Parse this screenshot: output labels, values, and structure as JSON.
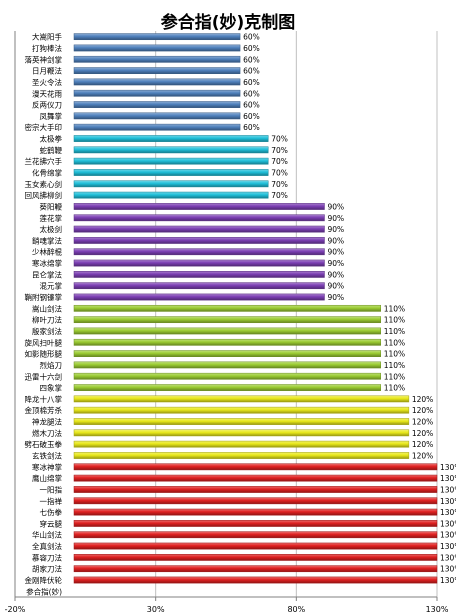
{
  "chart_data": {
    "type": "bar",
    "orientation": "horizontal",
    "title": "参合指(妙)克制图",
    "xlabel": "",
    "ylabel": "",
    "xlim": [
      -20,
      130
    ],
    "xticks": [
      "-20%",
      "30%",
      "80%",
      "130%"
    ],
    "grid": "vertical",
    "legend": "none",
    "categories": [
      "大嵩阳手",
      "打狗棒法",
      "落英神剑掌",
      "日月鞭法",
      "圣火令法",
      "漫天花雨",
      "反两仪刀",
      "凤舞掌",
      "密宗大手印",
      "太极拳",
      "蛇鹤鞭",
      "兰花拂穴手",
      "化骨绵掌",
      "玉女素心剑",
      "回风拂柳剑",
      "葵阳鞭",
      "莲花掌",
      "太极剑",
      "銷魂掌法",
      "少林醉棍",
      "寒冰绵掌",
      "昆仑掌法",
      "混元掌",
      "鞘附钢镰掌",
      "嵩山剑法",
      "柳叶刀法",
      "殷家剑法",
      "旋风扫叶腿",
      "如影随形腿",
      "烈焰刀",
      "迅雷十六剑",
      "四象掌",
      "降龙十八掌",
      "金顶棉芳杀",
      "神龙腿法",
      "燃木刀法",
      "劈石破玉拳",
      "玄铁剑法",
      "寒冰神掌",
      "鹰山绵掌",
      "一阳指",
      "一指禅",
      "七伤拳",
      "穿云腿",
      "华山剑法",
      "全真剑法",
      "慕容刀法",
      "胡家刀法",
      "金刚降伏轮",
      "参合指(妙)"
    ],
    "values": [
      60,
      60,
      60,
      60,
      60,
      60,
      60,
      60,
      60,
      70,
      70,
      70,
      70,
      70,
      70,
      90,
      90,
      90,
      90,
      90,
      90,
      90,
      90,
      90,
      110,
      110,
      110,
      110,
      110,
      110,
      110,
      110,
      120,
      120,
      120,
      120,
      120,
      120,
      130,
      130,
      130,
      130,
      130,
      130,
      130,
      130,
      130,
      130,
      130,
      null
    ],
    "value_labels": [
      "60%",
      "60%",
      "60%",
      "60%",
      "60%",
      "60%",
      "60%",
      "60%",
      "60%",
      "70%",
      "70%",
      "70%",
      "70%",
      "70%",
      "70%",
      "90%",
      "90%",
      "90%",
      "90%",
      "90%",
      "90%",
      "90%",
      "90%",
      "90%",
      "110%",
      "110%",
      "110%",
      "110%",
      "110%",
      "110%",
      "110%",
      "110%",
      "120%",
      "120%",
      "120%",
      "120%",
      "120%",
      "120%",
      "130%",
      "130%",
      "130%",
      "130%",
      "130%",
      "130%",
      "130%",
      "130%",
      "130%",
      "130%",
      "130%",
      ""
    ],
    "group_colors": {
      "60": "#4f81bd",
      "70": "#1fbfd9",
      "90": "#7c3fb4",
      "110": "#9bcc32",
      "120": "#e8e81a",
      "130": "#e02020"
    }
  }
}
